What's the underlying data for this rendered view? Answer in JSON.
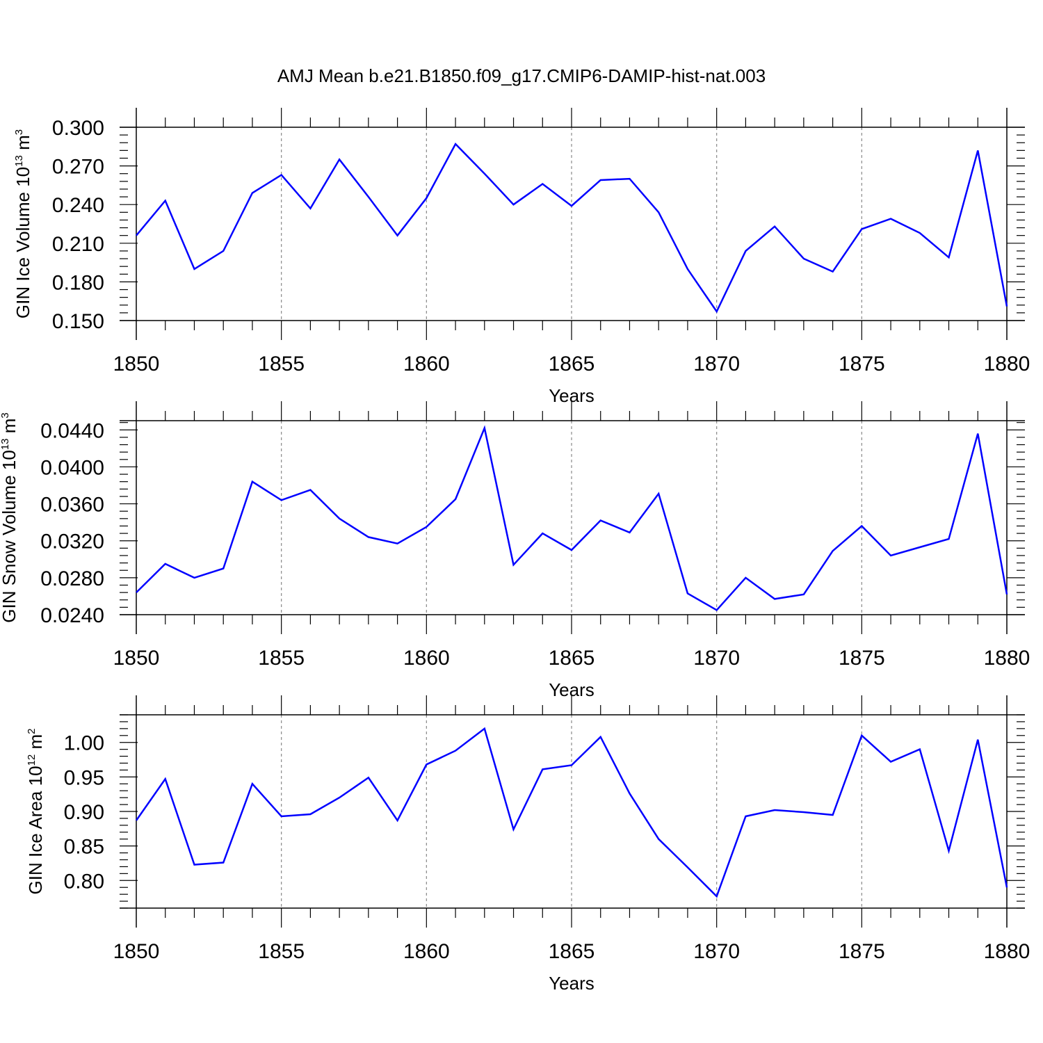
{
  "figure": {
    "title": "AMJ Mean b.e21.B1850.f09_g17.CMIP6-DAMIP-hist-nat.003"
  },
  "chart_data": [
    {
      "type": "line",
      "ylabel": {
        "main": "GIN Ice Volume 10",
        "exp": "13",
        "unit": " m",
        "unit_exp": "3"
      },
      "xlabel": "Years",
      "xlim": [
        1850,
        1880
      ],
      "ylim": [
        0.15,
        0.3
      ],
      "yticks": [
        0.15,
        0.18,
        0.21,
        0.24,
        0.27,
        0.3
      ],
      "ytick_labels": [
        "0.150",
        "0.180",
        "0.210",
        "0.240",
        "0.270",
        "0.300"
      ],
      "xticks": [
        1850,
        1855,
        1860,
        1865,
        1870,
        1875,
        1880
      ],
      "xtick_labels": [
        "1850",
        "1855",
        "1860",
        "1865",
        "1870",
        "1875",
        "1880"
      ],
      "grid": "dashed vertical at major x ticks",
      "line_color": "#0000ff",
      "x": [
        1850,
        1851,
        1852,
        1853,
        1854,
        1855,
        1856,
        1857,
        1858,
        1859,
        1860,
        1861,
        1862,
        1863,
        1864,
        1865,
        1866,
        1867,
        1868,
        1869,
        1870,
        1871,
        1872,
        1873,
        1874,
        1875,
        1876,
        1877,
        1878,
        1879,
        1880
      ],
      "y": [
        0.216,
        0.243,
        0.19,
        0.204,
        0.249,
        0.263,
        0.237,
        0.275,
        0.246,
        0.216,
        0.245,
        0.287,
        0.264,
        0.24,
        0.256,
        0.239,
        0.259,
        0.26,
        0.234,
        0.19,
        0.157,
        0.204,
        0.223,
        0.198,
        0.188,
        0.221,
        0.229,
        0.218,
        0.199,
        0.282,
        0.161
      ]
    },
    {
      "type": "line",
      "ylabel": {
        "main": "GIN Snow Volume 10",
        "exp": "13",
        "unit": " m",
        "unit_exp": "3"
      },
      "xlabel": "Years",
      "xlim": [
        1850,
        1880
      ],
      "ylim": [
        0.024,
        0.045
      ],
      "yticks": [
        0.024,
        0.028,
        0.032,
        0.036,
        0.04,
        0.044
      ],
      "ytick_labels": [
        "0.0240",
        "0.0280",
        "0.0320",
        "0.0360",
        "0.0400",
        "0.0440"
      ],
      "xticks": [
        1850,
        1855,
        1860,
        1865,
        1870,
        1875,
        1880
      ],
      "xtick_labels": [
        "1850",
        "1855",
        "1860",
        "1865",
        "1870",
        "1875",
        "1880"
      ],
      "grid": "dashed vertical at major x ticks",
      "line_color": "#0000ff",
      "x": [
        1850,
        1851,
        1852,
        1853,
        1854,
        1855,
        1856,
        1857,
        1858,
        1859,
        1860,
        1861,
        1862,
        1863,
        1864,
        1865,
        1866,
        1867,
        1868,
        1869,
        1870,
        1871,
        1872,
        1873,
        1874,
        1875,
        1876,
        1877,
        1878,
        1879,
        1880
      ],
      "y": [
        0.0264,
        0.0295,
        0.028,
        0.029,
        0.0384,
        0.0364,
        0.0375,
        0.0344,
        0.0324,
        0.0317,
        0.0335,
        0.0365,
        0.0442,
        0.0294,
        0.0328,
        0.031,
        0.0342,
        0.0329,
        0.0371,
        0.0263,
        0.0245,
        0.028,
        0.0257,
        0.0262,
        0.0309,
        0.0336,
        0.0304,
        0.0313,
        0.0322,
        0.0436,
        0.0262
      ]
    },
    {
      "type": "line",
      "ylabel": {
        "main": "GIN Ice Area 10",
        "exp": "12",
        "unit": " m",
        "unit_exp": "2"
      },
      "xlabel": "Years",
      "xlim": [
        1850,
        1880
      ],
      "ylim": [
        0.76,
        1.04
      ],
      "yticks": [
        0.8,
        0.85,
        0.9,
        0.95,
        1.0
      ],
      "ytick_labels": [
        "0.80",
        "0.85",
        "0.90",
        "0.95",
        "1.00"
      ],
      "xticks": [
        1850,
        1855,
        1860,
        1865,
        1870,
        1875,
        1880
      ],
      "xtick_labels": [
        "1850",
        "1855",
        "1860",
        "1865",
        "1870",
        "1875",
        "1880"
      ],
      "grid": "dashed vertical at major x ticks",
      "line_color": "#0000ff",
      "x": [
        1850,
        1851,
        1852,
        1853,
        1854,
        1855,
        1856,
        1857,
        1858,
        1859,
        1860,
        1861,
        1862,
        1863,
        1864,
        1865,
        1866,
        1867,
        1868,
        1869,
        1870,
        1871,
        1872,
        1873,
        1874,
        1875,
        1876,
        1877,
        1878,
        1879,
        1880
      ],
      "y": [
        0.887,
        0.947,
        0.823,
        0.826,
        0.94,
        0.893,
        0.896,
        0.92,
        0.949,
        0.887,
        0.968,
        0.988,
        1.02,
        0.874,
        0.961,
        0.967,
        1.008,
        0.926,
        0.86,
        0.819,
        0.777,
        0.893,
        0.902,
        0.899,
        0.895,
        1.01,
        0.972,
        0.99,
        0.843,
        1.004,
        0.79
      ]
    }
  ]
}
